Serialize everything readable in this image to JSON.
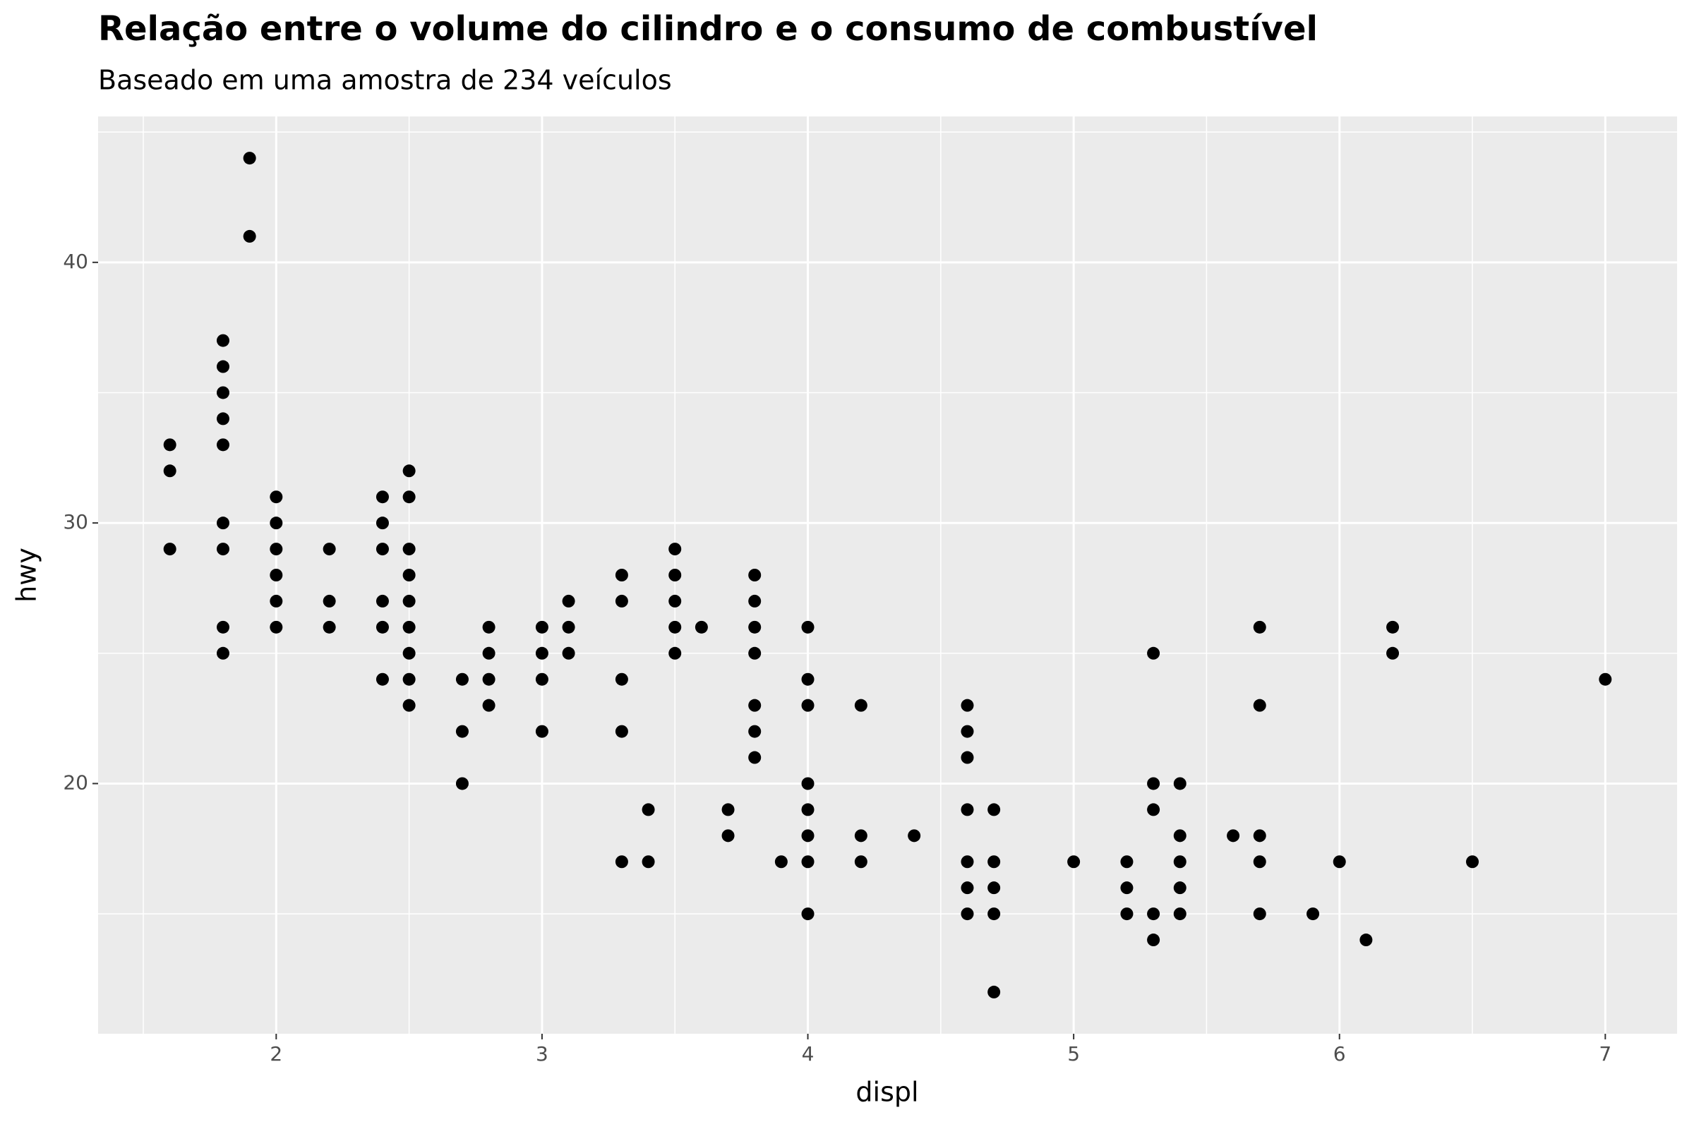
{
  "chart_data": {
    "type": "scatter",
    "title": "Relação entre o volume do cilindro e o consumo de combustível",
    "subtitle": "Baseado em uma amostra de 234 veículos",
    "x_label": "displ",
    "y_label": "hwy",
    "color": "#000000",
    "panel_color": "#ebebeb",
    "grid": true,
    "xlim": [
      1.33,
      7.27
    ],
    "ylim": [
      10.4,
      45.6
    ],
    "xticks": [
      2,
      3,
      4,
      5,
      6,
      7
    ],
    "yticks": [
      20,
      30,
      40
    ],
    "x_minor_grid": [
      1.5,
      2.5,
      3.5,
      4.5,
      5.5,
      6.5
    ],
    "y_minor_grid": [
      15,
      25,
      35,
      45
    ],
    "x": [
      1.6,
      1.6,
      1.6,
      1.8,
      1.8,
      1.8,
      1.8,
      1.8,
      1.8,
      1.8,
      1.8,
      1.8,
      1.9,
      1.9,
      2.0,
      2.0,
      2.0,
      2.0,
      2.0,
      2.0,
      2.2,
      2.2,
      2.2,
      2.4,
      2.4,
      2.4,
      2.4,
      2.4,
      2.4,
      2.5,
      2.5,
      2.5,
      2.5,
      2.5,
      2.5,
      2.5,
      2.5,
      2.5,
      2.7,
      2.7,
      2.7,
      2.8,
      2.8,
      2.8,
      2.8,
      3.0,
      3.0,
      3.0,
      3.0,
      3.1,
      3.1,
      3.1,
      3.3,
      3.3,
      3.3,
      3.3,
      3.3,
      3.4,
      3.4,
      3.5,
      3.5,
      3.5,
      3.5,
      3.5,
      3.6,
      3.7,
      3.7,
      3.8,
      3.8,
      3.8,
      3.8,
      3.8,
      3.8,
      3.8,
      3.9,
      4.0,
      4.0,
      4.0,
      4.0,
      4.0,
      4.0,
      4.0,
      4.0,
      4.2,
      4.2,
      4.2,
      4.4,
      4.6,
      4.6,
      4.6,
      4.6,
      4.6,
      4.6,
      4.6,
      4.7,
      4.7,
      4.7,
      4.7,
      4.7,
      5.0,
      5.2,
      5.2,
      5.2,
      5.3,
      5.3,
      5.3,
      5.3,
      5.3,
      5.4,
      5.4,
      5.4,
      5.4,
      5.4,
      5.6,
      5.7,
      5.7,
      5.7,
      5.7,
      5.7,
      5.9,
      6.0,
      6.1,
      6.2,
      6.2,
      6.5,
      7.0
    ],
    "values": [
      33,
      32,
      29,
      37,
      36,
      35,
      34,
      33,
      30,
      29,
      26,
      25,
      44,
      41,
      31,
      30,
      29,
      28,
      27,
      26,
      29,
      27,
      26,
      31,
      30,
      29,
      27,
      26,
      24,
      32,
      31,
      29,
      28,
      27,
      26,
      25,
      24,
      23,
      24,
      22,
      20,
      26,
      25,
      24,
      23,
      26,
      25,
      24,
      22,
      27,
      26,
      25,
      28,
      27,
      24,
      22,
      17,
      19,
      17,
      29,
      28,
      27,
      26,
      25,
      26,
      19,
      18,
      28,
      27,
      26,
      25,
      23,
      22,
      21,
      17,
      26,
      24,
      23,
      20,
      19,
      18,
      17,
      15,
      23,
      18,
      17,
      18,
      23,
      22,
      21,
      19,
      17,
      16,
      15,
      19,
      17,
      16,
      15,
      12,
      17,
      17,
      16,
      15,
      25,
      20,
      19,
      15,
      14,
      20,
      18,
      17,
      16,
      15,
      18,
      26,
      23,
      18,
      17,
      15,
      15,
      17,
      14,
      26,
      25,
      17,
      24
    ]
  }
}
